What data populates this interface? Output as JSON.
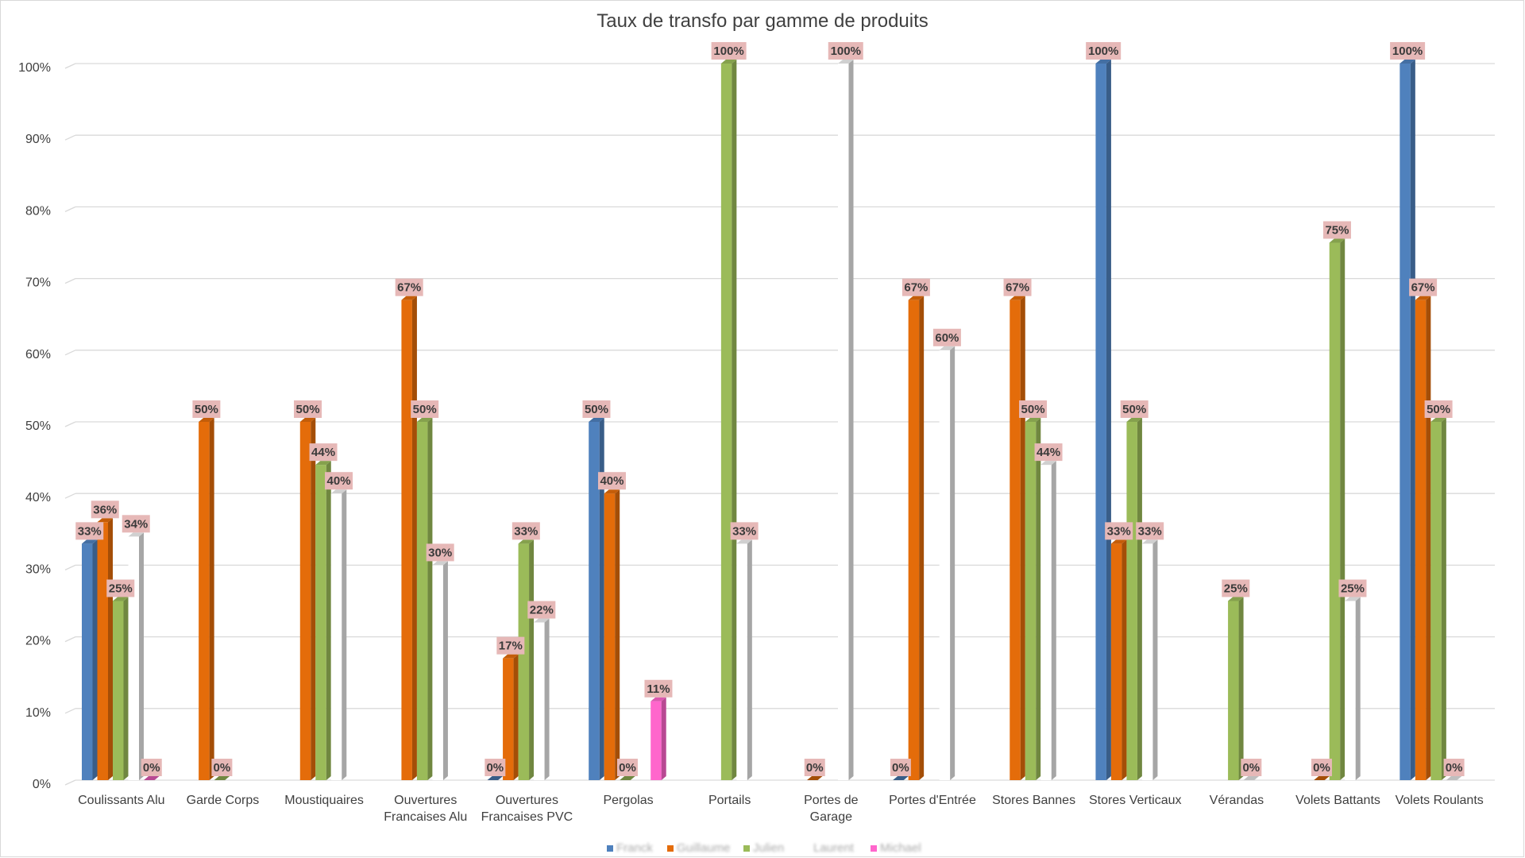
{
  "chart_data": {
    "type": "bar",
    "title": "Taux de transfo par gamme de produits",
    "xlabel": "",
    "ylabel": "",
    "ylim": [
      0,
      1
    ],
    "yticks": [
      "0%",
      "10%",
      "20%",
      "30%",
      "40%",
      "50%",
      "60%",
      "70%",
      "80%",
      "90%",
      "100%"
    ],
    "grid": true,
    "legend_position": "bottom",
    "categories": [
      [
        "Coulissants Alu"
      ],
      [
        "Garde Corps"
      ],
      [
        "Moustiquaires"
      ],
      [
        "Ouvertures",
        "Francaises Alu"
      ],
      [
        "Ouvertures",
        "Francaises PVC"
      ],
      [
        "Pergolas"
      ],
      [
        "Portails"
      ],
      [
        "Portes de",
        "Garage"
      ],
      [
        "Portes d'Entrée"
      ],
      [
        "Stores Bannes"
      ],
      [
        "Stores Verticaux"
      ],
      [
        "Vérandas"
      ],
      [
        "Volets Battants"
      ],
      [
        "Volets Roulants"
      ]
    ],
    "series": [
      {
        "name": "Franck",
        "color": "#4f81bd",
        "values": [
          0.33,
          null,
          null,
          null,
          0,
          0.5,
          null,
          null,
          0,
          null,
          1.0,
          null,
          null,
          1.0
        ],
        "labels": [
          "33%",
          null,
          null,
          null,
          "0%",
          "50%",
          null,
          null,
          "0%",
          null,
          "100%",
          null,
          null,
          "100%"
        ]
      },
      {
        "name": "Guillaume",
        "color": "#e46c0a",
        "values": [
          0.36,
          0.5,
          0.5,
          0.67,
          0.17,
          0.4,
          null,
          0,
          0.67,
          0.67,
          0.33,
          null,
          0,
          0.67
        ],
        "labels": [
          "36%",
          "50%",
          "50%",
          "67%",
          "17%",
          "40%",
          null,
          "0%",
          "67%",
          "67%",
          "33%",
          null,
          "0%",
          "67%"
        ]
      },
      {
        "name": "Julien",
        "color": "#9bbb59",
        "values": [
          0.25,
          0,
          0.44,
          0.5,
          0.33,
          0,
          1.0,
          null,
          null,
          0.5,
          0.5,
          0.25,
          0.75,
          0.5
        ],
        "labels": [
          "25%",
          "0%",
          "44%",
          "50%",
          "33%",
          "0%",
          "100%",
          null,
          null,
          "50%",
          "50%",
          "25%",
          "75%",
          "50%"
        ]
      },
      {
        "name": "Laurent",
        "color": "#ffffff",
        "values": [
          0.34,
          null,
          0.4,
          0.3,
          0.22,
          null,
          0.33,
          1.0,
          0.6,
          0.44,
          0.33,
          0,
          0.25,
          0
        ],
        "labels": [
          "34%",
          null,
          "40%",
          "30%",
          "22%",
          null,
          "33%",
          "100%",
          "60%",
          "44%",
          "33%",
          "0%",
          "25%",
          "0%"
        ]
      },
      {
        "name": "Michael",
        "color": "#ff66cc",
        "values": [
          0,
          null,
          null,
          null,
          null,
          0.11,
          null,
          null,
          null,
          null,
          null,
          null,
          null,
          null
        ],
        "labels": [
          "0%",
          null,
          null,
          null,
          null,
          "11%",
          null,
          null,
          null,
          null,
          null,
          null,
          null,
          null
        ]
      }
    ]
  }
}
